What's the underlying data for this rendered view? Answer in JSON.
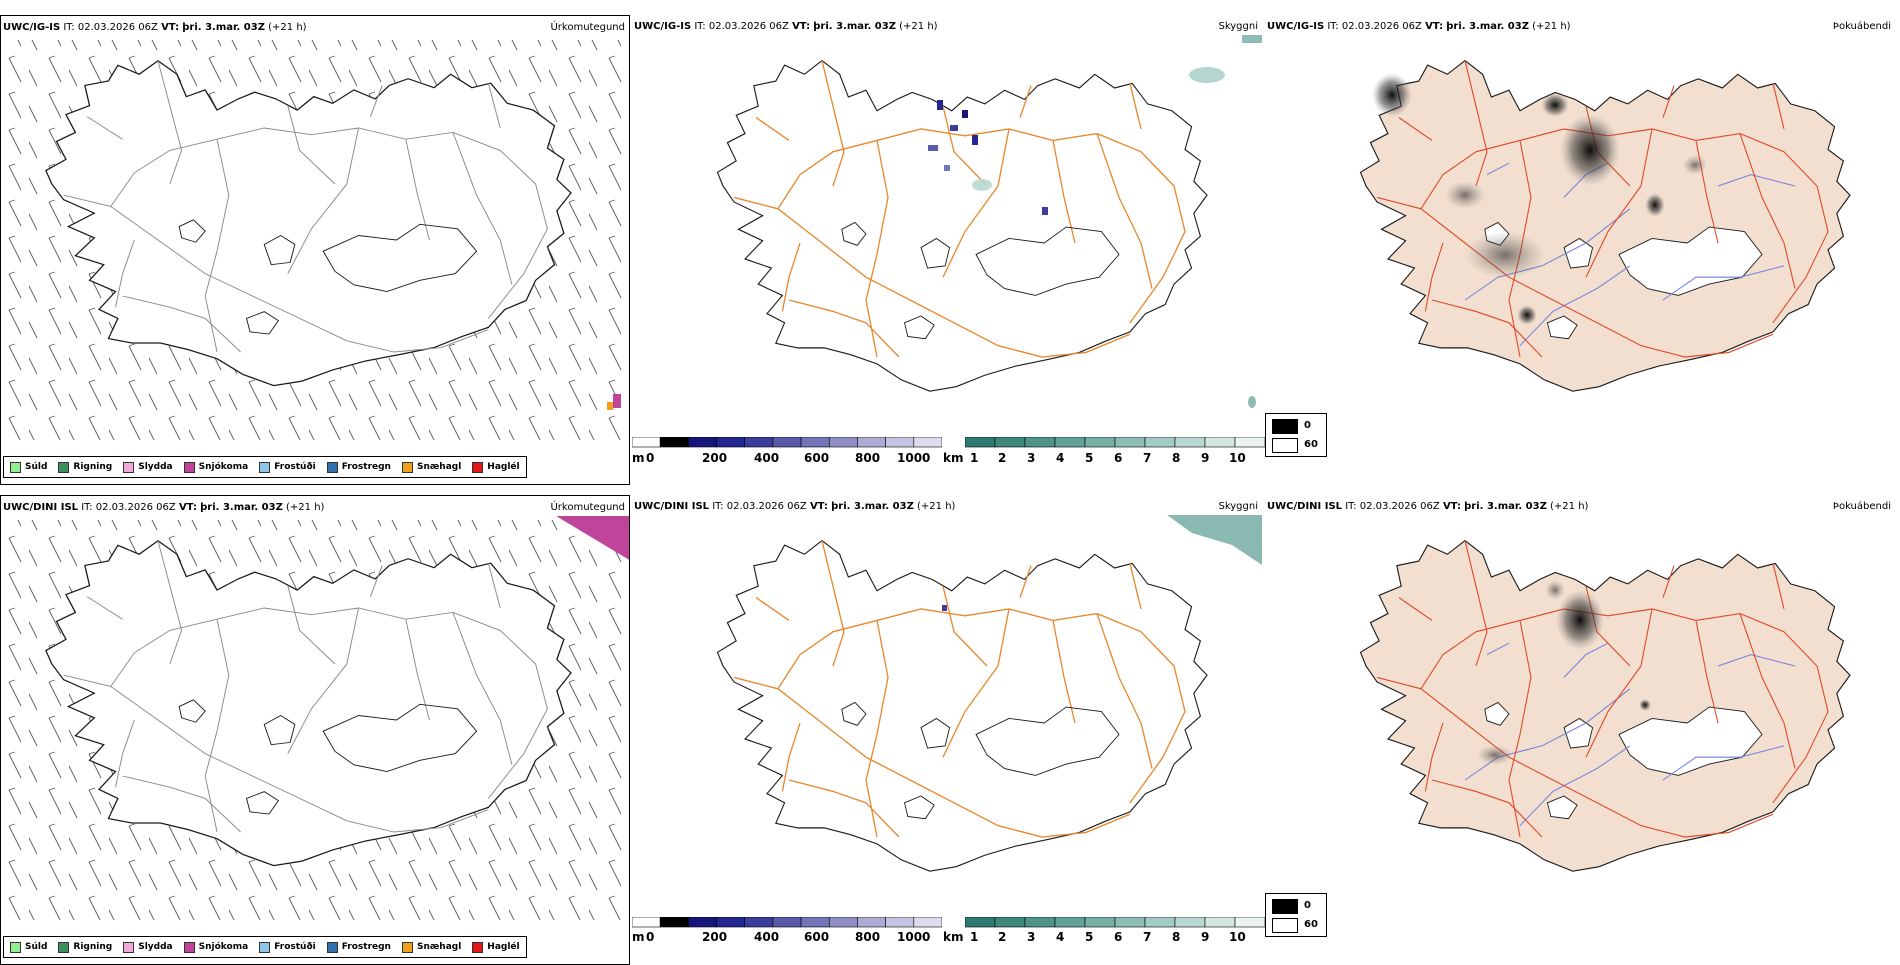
{
  "rows": [
    {
      "model": "UWC/IG-IS",
      "it_label": "IT:",
      "it_value": "02.03.2026 06Z",
      "vt_label": "VT:",
      "vt_value": "þri. 3.mar. 03Z",
      "lead": "(+21 h)"
    },
    {
      "model": "UWC/DINI ISL",
      "it_label": "IT:",
      "it_value": "02.03.2026 06Z",
      "vt_label": "VT:",
      "vt_value": "þri. 3.mar. 03Z",
      "lead": "(+21 h)"
    }
  ],
  "panel_types": {
    "precip": "Úrkomutegund",
    "cloud": "Skyggni",
    "fog": "Þokuábendi"
  },
  "precip_legend": [
    {
      "label": "Súld",
      "color": "#90ee90"
    },
    {
      "label": "Rigning",
      "color": "#3a8f5a"
    },
    {
      "label": "Slydda",
      "color": "#f0a8d8"
    },
    {
      "label": "Snjókoma",
      "color": "#c0449a"
    },
    {
      "label": "Frostúði",
      "color": "#8fc4ec"
    },
    {
      "label": "Frostregn",
      "color": "#2f6fb0"
    },
    {
      "label": "Snæhagl",
      "color": "#f0a020"
    },
    {
      "label": "Haglél",
      "color": "#e01818"
    }
  ],
  "ceiling_bar": {
    "unit": "m",
    "ticks": [
      "0",
      "200",
      "400",
      "600",
      "800",
      "1000"
    ],
    "colors": [
      "#ffffff",
      "#000000",
      "#17177a",
      "#22288f",
      "#3a3d9c",
      "#5a5aaa",
      "#7474b8",
      "#8f8fc6",
      "#ababd4",
      "#c4c4e2",
      "#dcdcee"
    ]
  },
  "visibility_bar": {
    "unit": "km",
    "ticks": [
      "1",
      "2",
      "3",
      "4",
      "5",
      "6",
      "7",
      "8",
      "9",
      "10"
    ],
    "colors": [
      "#2f7a70",
      "#3d877d",
      "#4f948a",
      "#62a198",
      "#77aea6",
      "#8cbcb5",
      "#a3cac4",
      "#bad8d3",
      "#d2e6e2",
      "#ebf3f1"
    ]
  },
  "fog_legend": [
    {
      "value": "0",
      "color": "#000000"
    },
    {
      "value": "60",
      "color": "#ffffff"
    }
  ],
  "colors": {
    "coast": "#1a1a1a",
    "roads_orange": "#e8882e",
    "roads_red": "#e04a2a",
    "land_fog": "#f2dfcf",
    "rivers": "#6f7fe0",
    "snow_precip": "#c0449a"
  }
}
